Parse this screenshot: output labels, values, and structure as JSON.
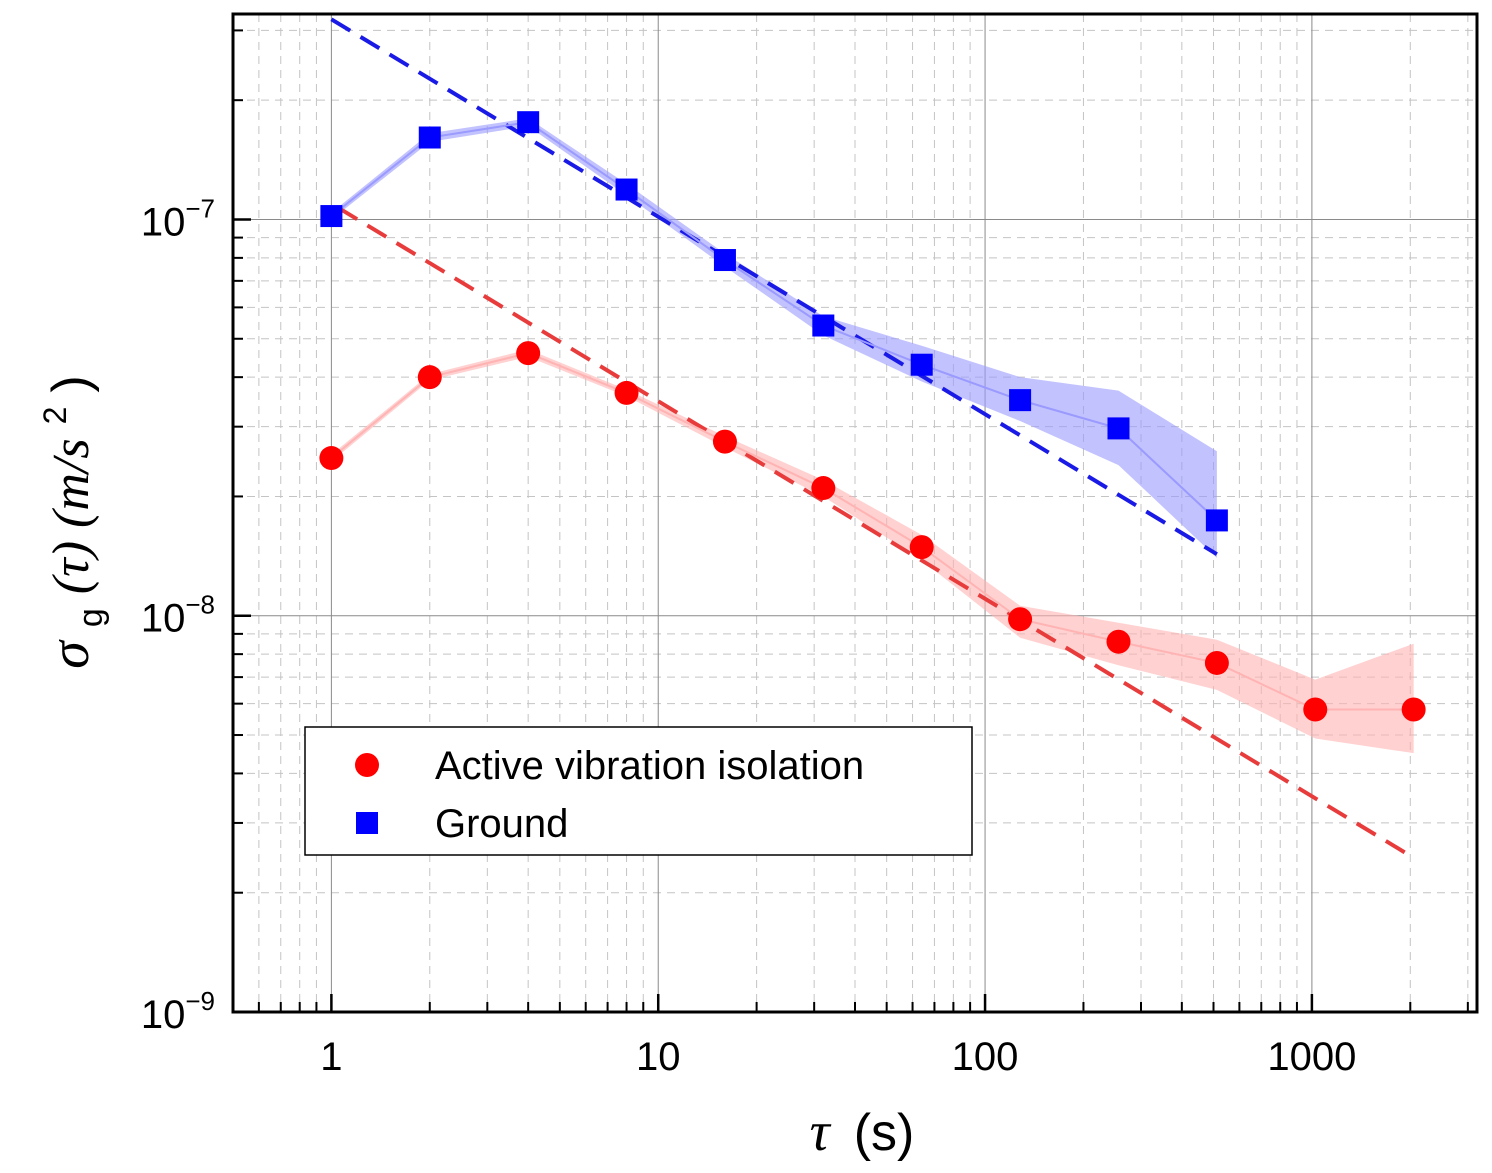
{
  "chart_data": {
    "type": "scatter",
    "x_scale": "log",
    "y_scale": "log",
    "xlim": [
      0.5,
      3200
    ],
    "ylim": [
      1e-09,
      3.3e-07
    ],
    "grid": true,
    "legend_position": "bottom-left",
    "xlabel": {
      "symbol": "τ",
      "unit": "(s)"
    },
    "ylabel": {
      "symbol": "σ",
      "sub": "g",
      "arg": "(τ) (m/s",
      "sup": "2",
      "close": ")"
    },
    "x_ticks": [
      {
        "value": 1,
        "label": "1"
      },
      {
        "value": 10,
        "label": "10"
      },
      {
        "value": 100,
        "label": "100"
      },
      {
        "value": 1000,
        "label": "1000"
      }
    ],
    "y_ticks": [
      {
        "value": 1e-07,
        "base": "10",
        "exp": "−7"
      },
      {
        "value": 1e-08,
        "base": "10",
        "exp": "−8"
      },
      {
        "value": 1e-09,
        "base": "10",
        "exp": "−9"
      }
    ],
    "series": [
      {
        "name": "Ground",
        "marker": "square",
        "color": "#0000ff",
        "band_color": "#9a9aff",
        "x": [
          1,
          2,
          4,
          8,
          16,
          32,
          64,
          128,
          256,
          512
        ],
        "y": [
          1.02e-07,
          1.61e-07,
          1.76e-07,
          1.19e-07,
          7.9e-08,
          5.4e-08,
          4.3e-08,
          3.5e-08,
          2.97e-08,
          1.74e-08
        ],
        "band_low": [
          1e-07,
          1.57e-07,
          1.72e-07,
          1.15e-07,
          7.6e-08,
          5.1e-08,
          3.9e-08,
          3.1e-08,
          2.4e-08,
          1.4e-08
        ],
        "band_high": [
          1.04e-07,
          1.65e-07,
          1.8e-07,
          1.23e-07,
          8.2e-08,
          5.7e-08,
          4.8e-08,
          4e-08,
          3.7e-08,
          2.6e-08
        ],
        "fit": {
          "x": [
            1,
            512
          ],
          "y": [
            3.2e-07,
            1.43e-08
          ],
          "color": "#1a1ae6"
        }
      },
      {
        "name": "Active vibration isolation",
        "marker": "circle",
        "color": "#ff0000",
        "band_color": "#ffb3b3",
        "x": [
          1,
          2,
          4,
          8,
          16,
          32,
          64,
          128,
          256,
          512,
          1024,
          2048
        ],
        "y": [
          2.5e-08,
          4e-08,
          4.6e-08,
          3.65e-08,
          2.75e-08,
          2.1e-08,
          1.49e-08,
          9.8e-09,
          8.6e-09,
          7.6e-09,
          5.8e-09,
          5.8e-09
        ],
        "band_low": [
          2.45e-08,
          3.93e-08,
          4.5e-08,
          3.58e-08,
          2.66e-08,
          2e-08,
          1.38e-08,
          8.8e-09,
          7.5e-09,
          6.5e-09,
          4.9e-09,
          4.5e-09
        ],
        "band_high": [
          2.55e-08,
          4.07e-08,
          4.7e-08,
          3.72e-08,
          2.84e-08,
          2.2e-08,
          1.6e-08,
          1.06e-08,
          9.6e-09,
          8.7e-09,
          6.9e-09,
          8.5e-09
        ],
        "fit": {
          "x": [
            1.05,
            2048
          ],
          "y": [
            1.07e-07,
            2.45e-09
          ],
          "color": "#e83c3c"
        }
      }
    ]
  }
}
